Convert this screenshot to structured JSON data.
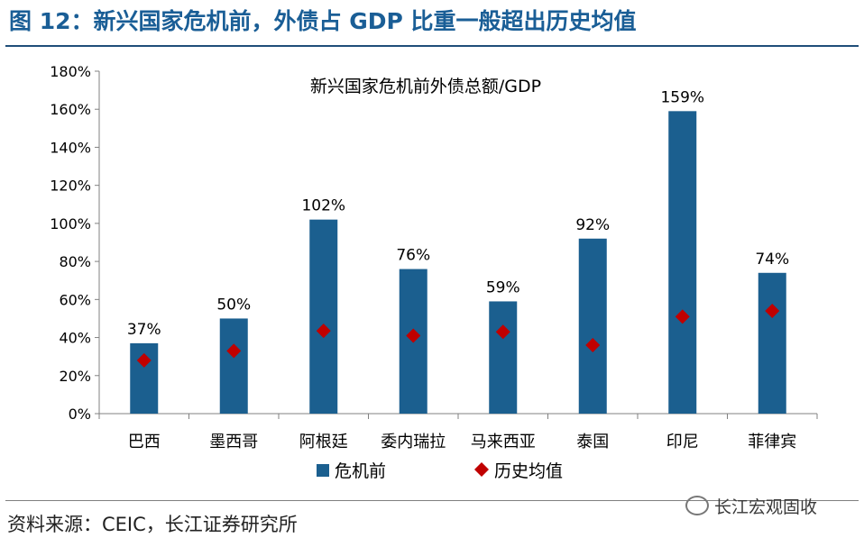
{
  "figure": {
    "title": "图 12：新兴国家危机前，外债占 GDP 比重一般超出历史均值",
    "source": "资料来源：CEIC，长江证券研究所",
    "watermark": "长江宏观固收"
  },
  "chart_data": {
    "type": "bar",
    "title": "新兴国家危机前外债总额/GDP",
    "categories": [
      "巴西",
      "墨西哥",
      "阿根廷",
      "委内瑞拉",
      "马来西亚",
      "泰国",
      "印尼",
      "菲律宾"
    ],
    "series": [
      {
        "name": "危机前",
        "type": "bar",
        "color": "#1b5f8f",
        "values": [
          37,
          50,
          102,
          76,
          59,
          92,
          159,
          74
        ]
      },
      {
        "name": "历史均值",
        "type": "scatter",
        "marker": "diamond",
        "color": "#c00000",
        "values": [
          28,
          33,
          43.5,
          41,
          43,
          36,
          51,
          54
        ]
      }
    ],
    "data_labels": [
      "37%",
      "50%",
      "102%",
      "76%",
      "59%",
      "92%",
      "159%",
      "74%"
    ],
    "y_ticks": [
      "0%",
      "20%",
      "40%",
      "60%",
      "80%",
      "100%",
      "120%",
      "140%",
      "160%",
      "180%"
    ],
    "ylim": [
      0,
      180
    ],
    "y_unit": "%",
    "legend_position": "bottom",
    "grid": false
  }
}
